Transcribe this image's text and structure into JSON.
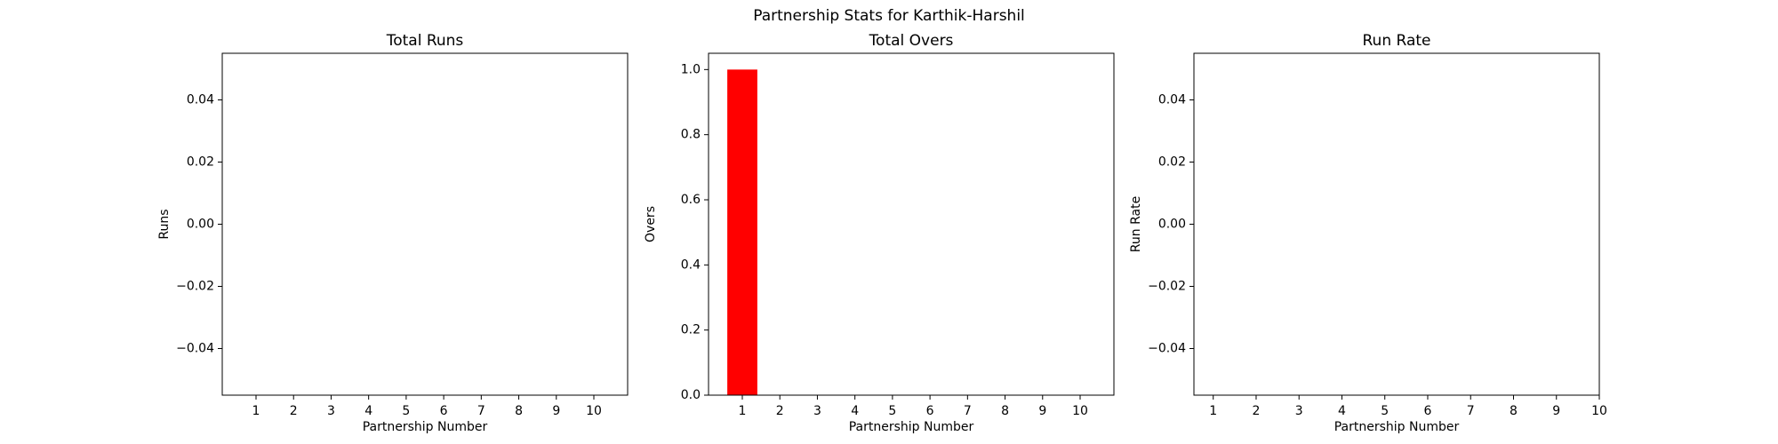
{
  "title": "Partnership Stats for Karthik-Harshil",
  "chart_data": [
    {
      "type": "bar",
      "title": "Total Runs",
      "x_label": "Partnership Number",
      "y_label": "Runs",
      "x": [
        1
      ],
      "values": [
        0
      ],
      "color": "#ff0000",
      "xlim": [
        0.1,
        10.9
      ],
      "xticks": [
        1,
        2,
        3,
        4,
        5,
        6,
        7,
        8,
        9,
        10
      ],
      "ylim": [
        -0.055,
        0.055
      ],
      "yticks": [
        {
          "value": -0.04,
          "label": "−0.04"
        },
        {
          "value": -0.02,
          "label": "−0.02"
        },
        {
          "value": 0,
          "label": "0.00"
        },
        0.02,
        0.04
      ]
    },
    {
      "type": "bar",
      "title": "Total Overs",
      "x_label": "Partnership Number",
      "y_label": "Overs",
      "x": [
        1
      ],
      "values": [
        1
      ],
      "color": "#ff0000",
      "xlim": [
        0.1,
        10.9
      ],
      "xticks": [
        1,
        2,
        3,
        4,
        5,
        6,
        7,
        8,
        9,
        10
      ],
      "ylim": [
        0,
        1.05
      ],
      "yticks": [
        {
          "value": 0,
          "label": "0.0"
        },
        0.2,
        0.4,
        0.6,
        0.8,
        {
          "value": 1,
          "label": "1.0"
        }
      ]
    },
    {
      "type": "line",
      "title": "Run Rate",
      "x_label": "Partnership Number",
      "y_label": "Run Rate",
      "x": [
        1
      ],
      "values": [
        0
      ],
      "color": "#1f77b4",
      "xlim": [
        0.55,
        10
      ],
      "xticks": [
        1,
        2,
        3,
        4,
        5,
        6,
        7,
        8,
        9,
        10
      ],
      "ylim": [
        -0.055,
        0.055
      ],
      "yticks": [
        {
          "value": -0.04,
          "label": "−0.04"
        },
        {
          "value": -0.02,
          "label": "−0.02"
        },
        {
          "value": 0,
          "label": "0.00"
        },
        0.02,
        0.04
      ]
    }
  ]
}
